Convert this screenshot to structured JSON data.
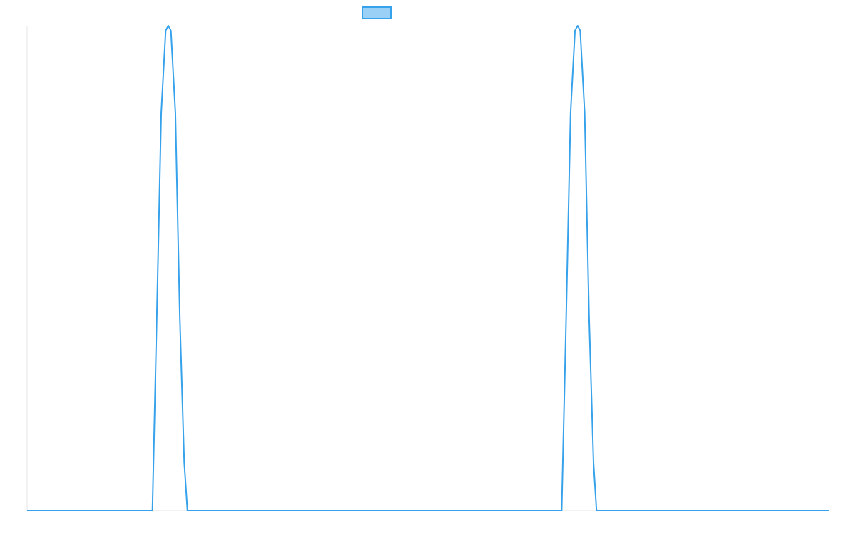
{
  "chart_data": {
    "type": "line",
    "title": "",
    "xlabel": "",
    "ylabel": "",
    "x_range": [
      0,
      1
    ],
    "ylim": [
      0,
      1
    ],
    "grid": false,
    "legend": {
      "placement": "top-center",
      "entries": [
        {
          "label": "",
          "color": "#36a2eb",
          "fill": "#9ad0f5"
        }
      ]
    },
    "series": [
      {
        "color": "#36a2eb",
        "x": [
          0,
          0.1563,
          0.1618,
          0.1673,
          0.1729,
          0.1761,
          0.1794,
          0.185,
          0.1905,
          0.196,
          0.2,
          0.6667,
          0.6723,
          0.6778,
          0.6833,
          0.6866,
          0.6898,
          0.6954,
          0.7009,
          0.7064,
          0.7102,
          1
        ],
        "y": [
          0,
          0,
          0.4,
          0.82,
          0.99,
          1,
          0.99,
          0.82,
          0.4,
          0.1,
          0,
          0,
          0.4,
          0.82,
          0.99,
          1,
          0.99,
          0.82,
          0.4,
          0.1,
          0,
          0
        ]
      }
    ]
  }
}
